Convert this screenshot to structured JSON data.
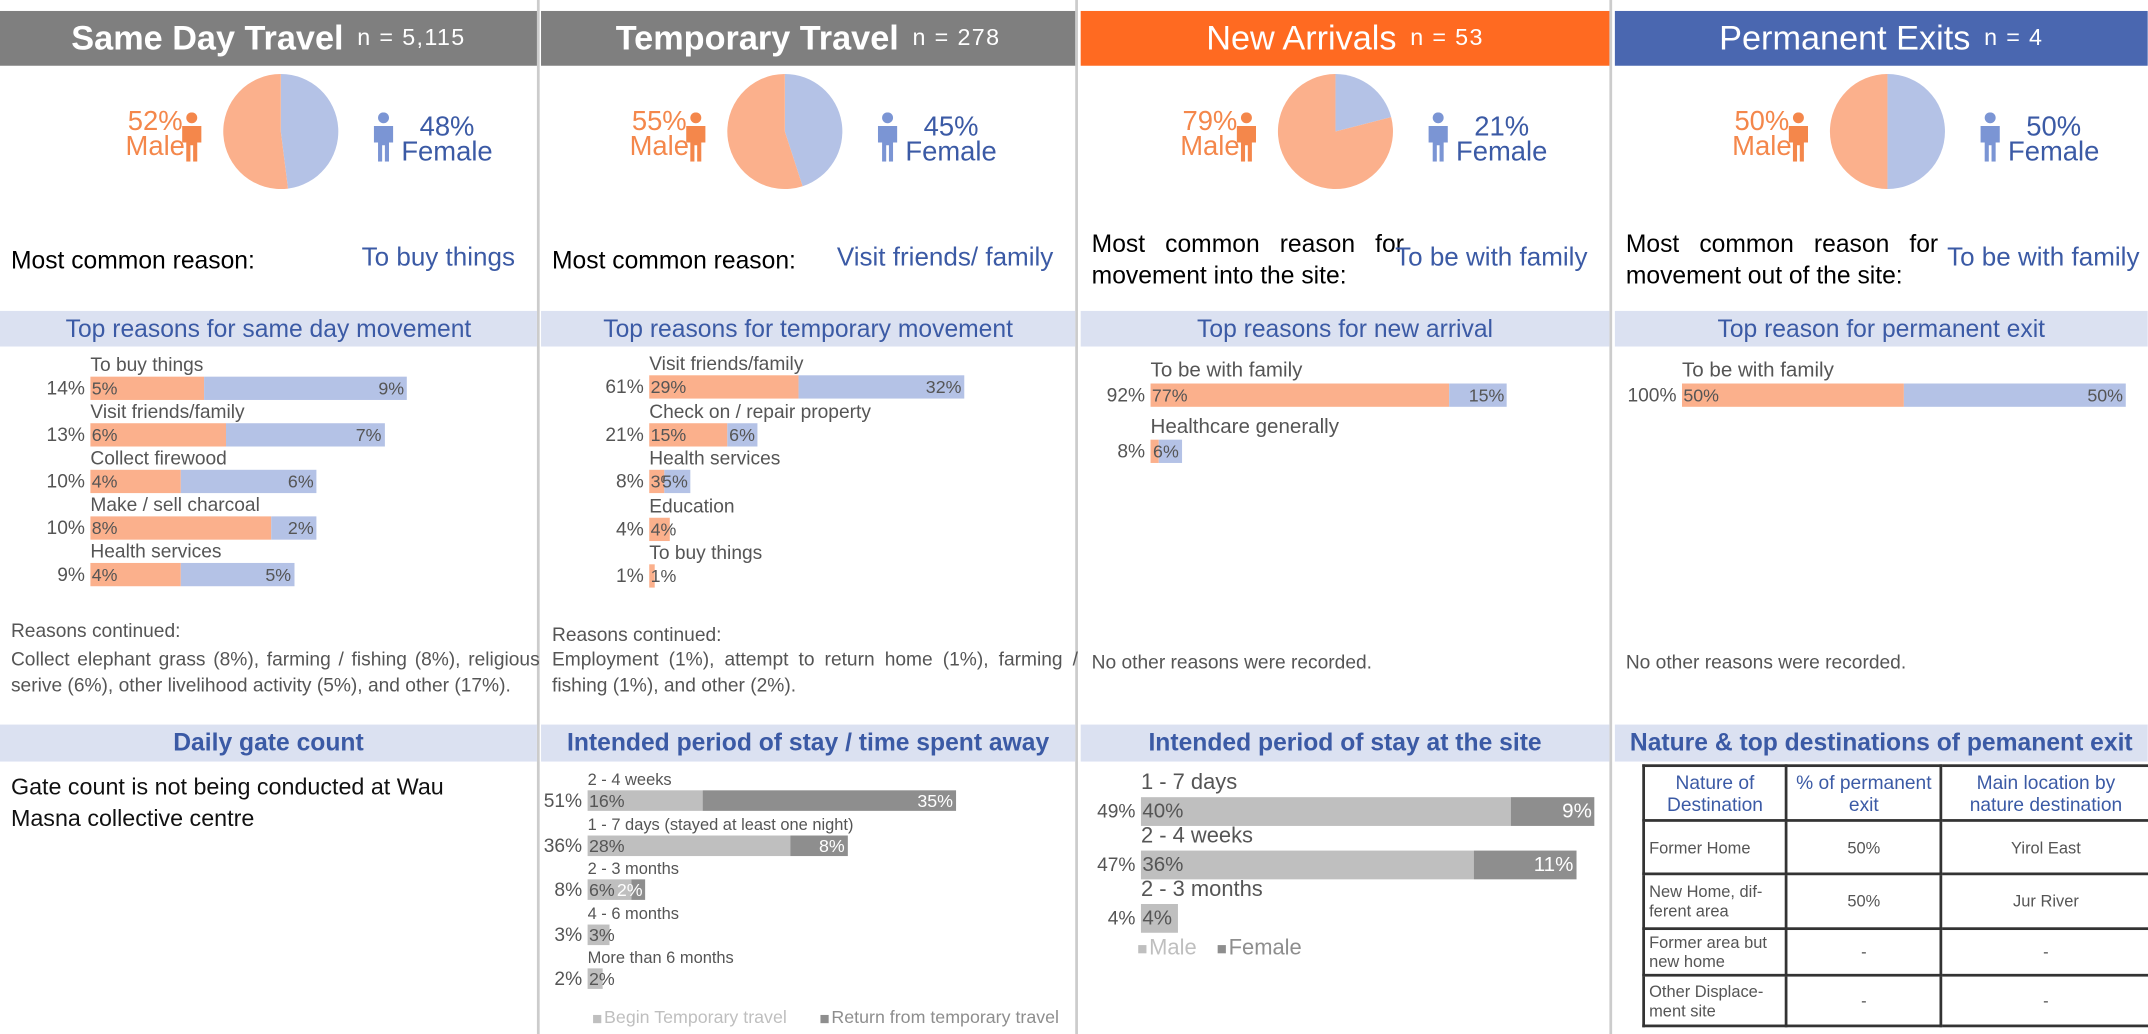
{
  "panels": [
    {
      "title": "Same Day Travel",
      "n": "n = 5,115",
      "header_color": "#7f7f7f",
      "pie": {
        "type": "pie",
        "labels": [
          "Male",
          "Female"
        ],
        "values": [
          52,
          48
        ],
        "value_labels": [
          "52%",
          "48%"
        ],
        "colors": [
          "#fbb08c",
          "#b4c2e6"
        ]
      },
      "reason_label": "Most common reason:",
      "reason": "To buy things",
      "bars_title": "Top reasons for same day movement",
      "bars": {
        "type": "bar",
        "categories": [
          "To buy things",
          "Visit friends/family",
          "Collect firewood",
          "Make / sell charcoal",
          "Health services"
        ],
        "total_labels": [
          "14%",
          "13%",
          "10%",
          "10%",
          "9%"
        ],
        "series": [
          {
            "color": "#fbb08c",
            "values": [
              5,
              6,
              4,
              8,
              4
            ],
            "value_labels": [
              "5%",
              "6%",
              "4%",
              "8%",
              "4%"
            ]
          },
          {
            "color": "#b4c2e6",
            "values": [
              9,
              7,
              6,
              2,
              5
            ],
            "value_labels": [
              "9%",
              "7%",
              "6%",
              "2%",
              "5%"
            ]
          }
        ]
      },
      "continued_title": "Reasons continued:",
      "continued": "Collect elephant grass (8%), farming / fishing (8%), religious serive (6%), other livelihood activity (5%), and other (17%).",
      "section2_title": "Daily gate count",
      "section2_text": "Gate count is not being conducted at Wau Masna collective centre"
    },
    {
      "title": "Temporary Travel",
      "n": "n = 278",
      "header_color": "#7f7f7f",
      "pie": {
        "type": "pie",
        "labels": [
          "Male",
          "Female"
        ],
        "values": [
          55,
          45
        ],
        "value_labels": [
          "55%",
          "45%"
        ],
        "colors": [
          "#fbb08c",
          "#b4c2e6"
        ]
      },
      "reason_label": "Most common reason:",
      "reason": "Visit friends/ family",
      "bars_title": "Top reasons for temporary movement",
      "bars": {
        "type": "bar",
        "categories": [
          "Visit friends/family",
          "Check on / repair property",
          "Health services",
          "Education",
          "To buy things"
        ],
        "total_labels": [
          "61%",
          "21%",
          "8%",
          "4%",
          "1%"
        ],
        "series": [
          {
            "color": "#fbb08c",
            "values": [
              29,
              15,
              3,
              4,
              1
            ],
            "value_labels": [
              "29%",
              "15%",
              "3%",
              "4%",
              "1%"
            ]
          },
          {
            "color": "#b4c2e6",
            "values": [
              32,
              6,
              5,
              null,
              null
            ],
            "value_labels": [
              "32%",
              "6%",
              "5%",
              null,
              null
            ]
          }
        ]
      },
      "continued_title": "Reasons continued:",
      "continued": "Employment (1%), attempt to return home (1%), farming / fishing (1%), and other (2%).",
      "section2_title": "Intended period of stay / time spent away",
      "period": {
        "type": "bar",
        "categories": [
          "2 - 4 weeks",
          "1 - 7 days (stayed at least one night)",
          "2 - 3 months",
          "4 - 6 months",
          "More than 6 months"
        ],
        "total_labels": [
          "51%",
          "36%",
          "8%",
          "3%",
          "2%"
        ],
        "series": [
          {
            "name": "Begin Temporary travel",
            "color": "#bfbfbf",
            "values": [
              16,
              28,
              6,
              3,
              2
            ],
            "value_labels": [
              "16%",
              "28%",
              "6%",
              "3%",
              "2%"
            ]
          },
          {
            "name": "Return from temporary travel",
            "color": "#8e8e8e",
            "values": [
              35,
              8,
              2,
              null,
              null
            ],
            "value_labels": [
              "35%",
              "8%",
              "2%",
              null,
              null
            ]
          }
        ]
      }
    },
    {
      "title": "New Arrivals",
      "n": "n = 53",
      "header_color": "#ff6a21",
      "pie": {
        "type": "pie",
        "labels": [
          "Male",
          "Female"
        ],
        "values": [
          79,
          21
        ],
        "value_labels": [
          "79%",
          "21%"
        ],
        "colors": [
          "#fbb08c",
          "#b4c2e6"
        ]
      },
      "reason_label": "Most common reason for movement into the site:",
      "reason": "To be with family",
      "bars_title": "Top reasons for new arrival",
      "bars": {
        "type": "bar",
        "categories": [
          "To be with family",
          "Healthcare generally"
        ],
        "total_labels": [
          "92%",
          "8%"
        ],
        "series": [
          {
            "color": "#fbb08c",
            "values": [
              77,
              2
            ],
            "value_labels": [
              "77%",
              null
            ]
          },
          {
            "color": "#b4c2e6",
            "values": [
              15,
              6
            ],
            "value_labels": [
              "15%",
              "6%"
            ]
          }
        ]
      },
      "continued": "No other reasons were recorded.",
      "section2_title": "Intended period of stay at the site",
      "period": {
        "type": "bar",
        "categories": [
          "1 - 7 days",
          "2 - 4 weeks",
          "2 - 3 months"
        ],
        "total_labels": [
          "49%",
          "47%",
          "4%"
        ],
        "series": [
          {
            "name": "Male",
            "color": "#bfbfbf",
            "values": [
              40,
              36,
              4
            ],
            "value_labels": [
              "40%",
              "36%",
              "4%"
            ]
          },
          {
            "name": "Female",
            "color": "#8e8e8e",
            "values": [
              9,
              11,
              null
            ],
            "value_labels": [
              "9%",
              "11%",
              null
            ]
          }
        ]
      }
    },
    {
      "title": "Permanent Exits",
      "n": "n = 4",
      "header_color": "#4a67b0",
      "pie": {
        "type": "pie",
        "labels": [
          "Male",
          "Female"
        ],
        "values": [
          50,
          50
        ],
        "value_labels": [
          "50%",
          "50%"
        ],
        "colors": [
          "#fbb08c",
          "#b4c2e6"
        ]
      },
      "reason_label": "Most common reason for movement out of the site:",
      "reason": "To be with family",
      "bars_title": "Top reason for permanent exit",
      "bars": {
        "type": "bar",
        "categories": [
          "To be with family"
        ],
        "total_labels": [
          "100%"
        ],
        "series": [
          {
            "color": "#fbb08c",
            "values": [
              50
            ],
            "value_labels": [
              "50%"
            ]
          },
          {
            "color": "#b4c2e6",
            "values": [
              50
            ],
            "value_labels": [
              "50%"
            ]
          }
        ]
      },
      "continued": "No other reasons were recorded.",
      "section2_title": "Nature & top destinations of pemanent exit",
      "table": {
        "headers": [
          "Nature of Destination",
          "% of permanent exit",
          "Main location by nature destination"
        ],
        "rows": [
          [
            "Former Home",
            "50%",
            "Yirol East"
          ],
          [
            "New Home, dif-ferent area",
            "50%",
            "Jur River"
          ],
          [
            "Former area but new home",
            "-",
            "-"
          ],
          [
            "Other Displace-ment site",
            "-",
            "-"
          ]
        ]
      }
    }
  ]
}
